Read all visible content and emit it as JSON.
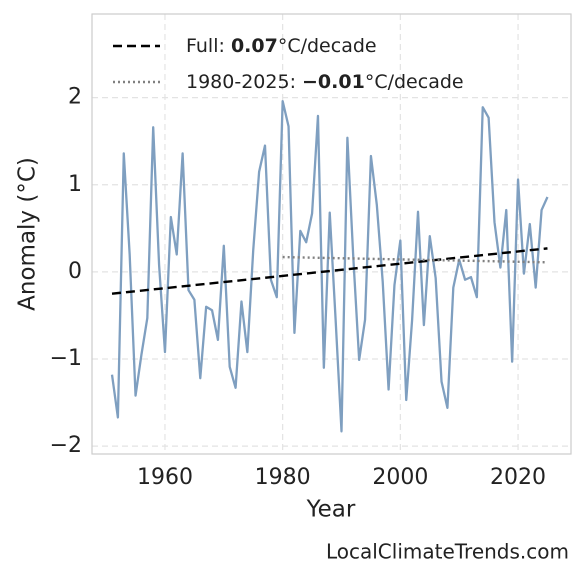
{
  "chart_data": {
    "type": "line",
    "x_label": "Year",
    "y_label": "Anomaly (°C)",
    "source": "LocalClimateTrends.com",
    "xlim": [
      1947.6,
      2029
    ],
    "ylim": [
      -2.09,
      2.96
    ],
    "xticks": [
      1960,
      1980,
      2000,
      2020
    ],
    "yticks": [
      {
        "value": -2,
        "label": "−2"
      },
      {
        "value": -1,
        "label": "−1"
      },
      0,
      1,
      2
    ],
    "grid": true,
    "legend": "upper left",
    "series": [
      {
        "color": "#7f9fc0",
        "x": [
          1951,
          1952,
          1953,
          1954,
          1955,
          1956,
          1957,
          1958,
          1959,
          1960,
          1961,
          1962,
          1963,
          1964,
          1965,
          1966,
          1967,
          1968,
          1969,
          1970,
          1971,
          1972,
          1973,
          1974,
          1975,
          1976,
          1977,
          1978,
          1979,
          1980,
          1981,
          1982,
          1983,
          1984,
          1985,
          1986,
          1987,
          1988,
          1989,
          1990,
          1991,
          1992,
          1993,
          1994,
          1995,
          1996,
          1997,
          1998,
          1999,
          2000,
          2001,
          2002,
          2003,
          2004,
          2005,
          2006,
          2007,
          2008,
          2009,
          2010,
          2011,
          2012,
          2013,
          2014,
          2015,
          2016,
          2017,
          2018,
          2019,
          2020,
          2021,
          2022,
          2023,
          2024,
          2025
        ],
        "values": [
          -1.18,
          -1.67,
          1.36,
          0.2,
          -1.42,
          -0.95,
          -0.53,
          1.66,
          0.08,
          -0.92,
          0.63,
          0.2,
          1.36,
          -0.21,
          -0.32,
          -1.22,
          -0.4,
          -0.44,
          -0.78,
          0.3,
          -1.09,
          -1.33,
          -0.34,
          -0.92,
          0.25,
          1.15,
          1.45,
          -0.09,
          -0.29,
          1.96,
          1.67,
          -0.7,
          0.47,
          0.34,
          0.67,
          1.79,
          -1.1,
          0.68,
          -0.55,
          -1.83,
          1.54,
          0.17,
          -1.01,
          -0.55,
          1.33,
          0.77,
          -0.11,
          -1.35,
          -0.15,
          0.36,
          -1.47,
          -0.55,
          0.69,
          -0.61,
          0.41,
          -0.07,
          -1.26,
          -1.56,
          -0.18,
          0.14,
          -0.09,
          -0.06,
          -0.29,
          1.89,
          1.77,
          0.57,
          0.05,
          0.71,
          -1.03,
          1.06,
          -0.02,
          0.55,
          -0.18,
          0.71,
          0.86
        ]
      },
      {
        "name": "Full:",
        "rate": 0.07,
        "unit": "°C/decade",
        "color": "#000000",
        "dash": "dashed",
        "x": [
          1951,
          2025
        ],
        "values": [
          -0.25,
          0.27
        ]
      },
      {
        "name": "1980-2025:",
        "rate": {
          "value": -0.01,
          "label": "−0.01"
        },
        "unit": "°C/decade",
        "color": "#808080",
        "dash": "dotted",
        "x": [
          1980,
          2025
        ],
        "values": [
          0.17,
          0.11
        ]
      }
    ]
  }
}
